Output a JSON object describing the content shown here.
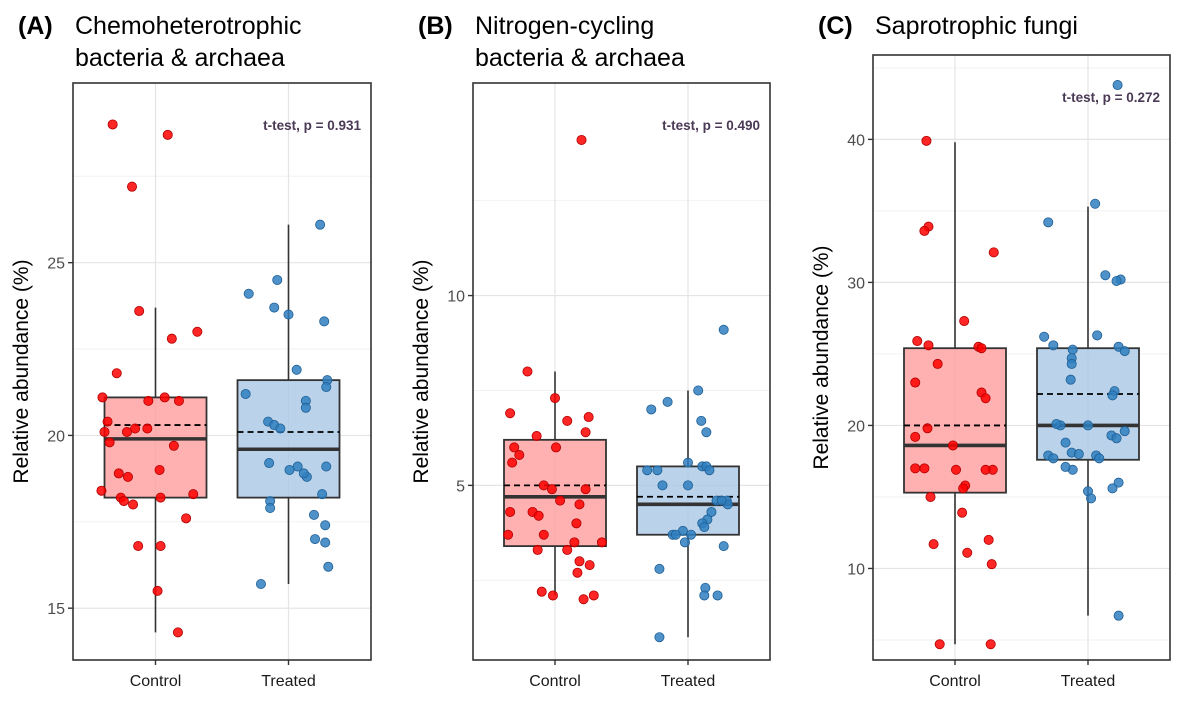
{
  "figure": {
    "panels_label": "three box plots with jittered points"
  },
  "colors": {
    "control_fill": "#ff9e9e",
    "control_point": "#ff0000",
    "treated_fill": "#a9c8e6",
    "treated_point": "#2f7fc0",
    "box_stroke": "#333333",
    "panel_border": "#333333",
    "grid_major": "#e4e4e4",
    "grid_minor": "#f2f2f2"
  },
  "chart_data": [
    {
      "type": "box",
      "panel_label": "(A)",
      "title": [
        "Chemoheterotrophic",
        "bacteria & archaea"
      ],
      "ylabel": "Relative abundance (%)",
      "categories": [
        "Control",
        "Treated"
      ],
      "ylim": [
        13.5,
        30.2
      ],
      "yticks": [
        15,
        20,
        25
      ],
      "minor_yticks": [
        17.5,
        22.5,
        27.5
      ],
      "annotation": "t-test, p = 0.931",
      "boxes": [
        {
          "name": "Control",
          "q1": 18.2,
          "median": 19.9,
          "q3": 21.1,
          "mean": 20.3,
          "whisker_low": 14.3,
          "whisker_high": 23.7
        },
        {
          "name": "Treated",
          "q1": 18.2,
          "median": 19.6,
          "q3": 21.6,
          "mean": 20.1,
          "whisker_low": 15.7,
          "whisker_high": 26.1
        }
      ],
      "points": [
        {
          "group": "Control",
          "values": [
            [
              -0.42,
              29.0
            ],
            [
              0.12,
              28.7
            ],
            [
              -0.23,
              27.2
            ],
            [
              -0.16,
              23.6
            ],
            [
              0.16,
              22.8
            ],
            [
              0.41,
              23.0
            ],
            [
              -0.38,
              21.8
            ],
            [
              -0.52,
              21.1
            ],
            [
              -0.07,
              21.0
            ],
            [
              0.09,
              21.1
            ],
            [
              0.23,
              21.0
            ],
            [
              -0.47,
              20.4
            ],
            [
              -0.2,
              20.2
            ],
            [
              -0.08,
              20.2
            ],
            [
              -0.28,
              20.1
            ],
            [
              -0.5,
              20.1
            ],
            [
              -0.45,
              19.8
            ],
            [
              0.18,
              19.7
            ],
            [
              -0.36,
              18.9
            ],
            [
              0.04,
              19.0
            ],
            [
              -0.27,
              18.8
            ],
            [
              -0.53,
              18.4
            ],
            [
              -0.34,
              18.2
            ],
            [
              -0.31,
              18.1
            ],
            [
              -0.22,
              18.0
            ],
            [
              0.05,
              18.2
            ],
            [
              0.37,
              18.3
            ],
            [
              0.3,
              17.6
            ],
            [
              -0.17,
              16.8
            ],
            [
              0.05,
              16.8
            ],
            [
              0.02,
              15.5
            ],
            [
              0.22,
              14.3
            ]
          ]
        },
        {
          "group": "Treated",
          "values": [
            [
              -0.39,
              24.1
            ],
            [
              -0.11,
              24.5
            ],
            [
              -0.14,
              23.7
            ],
            [
              0.0,
              23.5
            ],
            [
              0.31,
              26.1
            ],
            [
              0.35,
              23.3
            ],
            [
              0.08,
              21.9
            ],
            [
              0.38,
              21.6
            ],
            [
              0.37,
              21.4
            ],
            [
              -0.42,
              21.2
            ],
            [
              0.17,
              21.0
            ],
            [
              0.17,
              20.8
            ],
            [
              -0.2,
              20.4
            ],
            [
              -0.14,
              20.3
            ],
            [
              -0.08,
              20.2
            ],
            [
              -0.19,
              19.2
            ],
            [
              0.09,
              19.1
            ],
            [
              0.01,
              19.0
            ],
            [
              0.37,
              19.1
            ],
            [
              0.18,
              18.8
            ],
            [
              0.15,
              18.9
            ],
            [
              -0.18,
              18.1
            ],
            [
              0.33,
              18.3
            ],
            [
              -0.18,
              17.9
            ],
            [
              0.25,
              17.7
            ],
            [
              0.36,
              17.4
            ],
            [
              0.26,
              17.0
            ],
            [
              0.36,
              16.9
            ],
            [
              0.39,
              16.2
            ],
            [
              -0.27,
              15.7
            ]
          ]
        }
      ]
    },
    {
      "type": "box",
      "panel_label": "(B)",
      "title": [
        "Nitrogen-cycling",
        "bacteria & archaea"
      ],
      "ylabel": "Relative abundance (%)",
      "categories": [
        "Control",
        "Treated"
      ],
      "ylim": [
        0.4,
        15.6
      ],
      "yticks": [
        5,
        10
      ],
      "minor_yticks": [
        2.5,
        7.5,
        12.5
      ],
      "annotation": "t-test, p = 0.490",
      "boxes": [
        {
          "name": "Control",
          "q1": 3.4,
          "median": 4.7,
          "q3": 6.2,
          "mean": 5.0,
          "whisker_low": 2.1,
          "whisker_high": 8.0
        },
        {
          "name": "Treated",
          "q1": 3.7,
          "median": 4.5,
          "q3": 5.5,
          "mean": 4.7,
          "whisker_low": 1.0,
          "whisker_high": 7.5
        }
      ],
      "points": [
        {
          "group": "Control",
          "values": [
            [
              0.26,
              14.1
            ],
            [
              -0.27,
              8.0
            ],
            [
              -0.44,
              6.9
            ],
            [
              0.0,
              7.3
            ],
            [
              0.33,
              6.8
            ],
            [
              0.12,
              6.7
            ],
            [
              -0.18,
              6.3
            ],
            [
              -0.4,
              6.0
            ],
            [
              0.01,
              6.0
            ],
            [
              0.3,
              6.4
            ],
            [
              -0.35,
              5.8
            ],
            [
              -0.42,
              5.6
            ],
            [
              -0.11,
              5.0
            ],
            [
              -0.03,
              4.9
            ],
            [
              0.3,
              4.9
            ],
            [
              0.05,
              4.6
            ],
            [
              0.24,
              4.5
            ],
            [
              -0.44,
              4.3
            ],
            [
              -0.22,
              4.3
            ],
            [
              -0.16,
              4.2
            ],
            [
              0.21,
              4.0
            ],
            [
              -0.46,
              3.7
            ],
            [
              -0.11,
              3.7
            ],
            [
              0.46,
              3.5
            ],
            [
              0.19,
              3.5
            ],
            [
              -0.17,
              3.3
            ],
            [
              0.12,
              3.3
            ],
            [
              0.34,
              2.9
            ],
            [
              0.24,
              3.0
            ],
            [
              0.22,
              2.7
            ],
            [
              -0.13,
              2.2
            ],
            [
              -0.02,
              2.1
            ],
            [
              0.28,
              2.0
            ],
            [
              0.38,
              2.1
            ]
          ]
        },
        {
          "group": "Treated",
          "values": [
            [
              -0.36,
              7.0
            ],
            [
              -0.2,
              7.2
            ],
            [
              0.1,
              7.5
            ],
            [
              0.35,
              9.1
            ],
            [
              0.13,
              6.7
            ],
            [
              0.18,
              6.4
            ],
            [
              -0.3,
              5.4
            ],
            [
              0.0,
              5.6
            ],
            [
              0.14,
              5.5
            ],
            [
              0.18,
              5.5
            ],
            [
              0.21,
              5.4
            ],
            [
              -0.4,
              5.4
            ],
            [
              -0.25,
              5.0
            ],
            [
              0.0,
              5.0
            ],
            [
              0.38,
              4.6
            ],
            [
              0.28,
              4.6
            ],
            [
              0.39,
              4.5
            ],
            [
              0.23,
              4.3
            ],
            [
              0.33,
              4.6
            ],
            [
              0.19,
              4.1
            ],
            [
              0.14,
              4.0
            ],
            [
              0.16,
              3.9
            ],
            [
              -0.05,
              3.8
            ],
            [
              -0.15,
              3.7
            ],
            [
              -0.12,
              3.7
            ],
            [
              0.03,
              3.7
            ],
            [
              -0.03,
              3.5
            ],
            [
              0.35,
              3.4
            ],
            [
              -0.28,
              2.8
            ],
            [
              0.17,
              2.3
            ],
            [
              0.16,
              2.1
            ],
            [
              0.29,
              2.1
            ],
            [
              -0.28,
              1.0
            ]
          ]
        }
      ]
    },
    {
      "type": "box",
      "panel_label": "(C)",
      "title": [
        "Saprotrophic fungi"
      ],
      "ylabel": "Relative abundance (%)",
      "categories": [
        "Control",
        "Treated"
      ],
      "ylim": [
        3.6,
        45.9
      ],
      "yticks": [
        10,
        20,
        30,
        40
      ],
      "minor_yticks": [
        5,
        15,
        25,
        35,
        45
      ],
      "annotation": "t-test, p = 0.272",
      "boxes": [
        {
          "name": "Control",
          "q1": 15.3,
          "median": 18.6,
          "q3": 25.4,
          "mean": 20.0,
          "whisker_low": 4.7,
          "whisker_high": 39.8
        },
        {
          "name": "Treated",
          "q1": 17.6,
          "median": 20.0,
          "q3": 25.4,
          "mean": 22.2,
          "whisker_low": 6.7,
          "whisker_high": 35.3
        }
      ],
      "points": [
        {
          "group": "Control",
          "values": [
            [
              -0.28,
              39.9
            ],
            [
              -0.26,
              33.9
            ],
            [
              -0.3,
              33.6
            ],
            [
              0.38,
              32.1
            ],
            [
              0.09,
              27.3
            ],
            [
              -0.37,
              25.9
            ],
            [
              -0.26,
              25.6
            ],
            [
              0.23,
              25.5
            ],
            [
              0.26,
              25.4
            ],
            [
              -0.17,
              24.3
            ],
            [
              -0.39,
              23.0
            ],
            [
              0.26,
              22.3
            ],
            [
              0.3,
              21.9
            ],
            [
              -0.27,
              19.8
            ],
            [
              -0.39,
              19.2
            ],
            [
              -0.02,
              18.6
            ],
            [
              -0.39,
              17.0
            ],
            [
              -0.3,
              17.0
            ],
            [
              0.01,
              16.9
            ],
            [
              0.37,
              16.9
            ],
            [
              0.3,
              16.9
            ],
            [
              0.1,
              15.8
            ],
            [
              0.08,
              15.6
            ],
            [
              -0.24,
              15.0
            ],
            [
              0.07,
              13.9
            ],
            [
              -0.21,
              11.7
            ],
            [
              0.33,
              12.0
            ],
            [
              0.12,
              11.1
            ],
            [
              0.36,
              10.3
            ],
            [
              -0.15,
              4.7
            ],
            [
              0.35,
              4.7
            ]
          ]
        },
        {
          "group": "Treated",
          "values": [
            [
              0.29,
              43.8
            ],
            [
              -0.39,
              34.2
            ],
            [
              0.07,
              35.5
            ],
            [
              0.17,
              30.5
            ],
            [
              0.32,
              30.2
            ],
            [
              0.28,
              30.1
            ],
            [
              -0.43,
              26.2
            ],
            [
              0.09,
              26.3
            ],
            [
              -0.34,
              25.6
            ],
            [
              -0.15,
              25.3
            ],
            [
              0.3,
              25.5
            ],
            [
              0.36,
              25.2
            ],
            [
              -0.16,
              24.7
            ],
            [
              -0.16,
              24.3
            ],
            [
              0.26,
              22.4
            ],
            [
              -0.17,
              23.2
            ],
            [
              0.24,
              22.1
            ],
            [
              -0.27,
              20.0
            ],
            [
              0.0,
              20.0
            ],
            [
              -0.31,
              20.1
            ],
            [
              0.23,
              19.3
            ],
            [
              0.36,
              19.6
            ],
            [
              -0.22,
              18.8
            ],
            [
              -0.16,
              18.1
            ],
            [
              -0.09,
              18.0
            ],
            [
              -0.39,
              17.9
            ],
            [
              0.08,
              17.9
            ],
            [
              -0.34,
              17.7
            ],
            [
              0.28,
              19.1
            ],
            [
              0.11,
              17.7
            ],
            [
              -0.15,
              16.9
            ],
            [
              -0.22,
              17.1
            ],
            [
              0.3,
              16.0
            ],
            [
              0.24,
              15.6
            ],
            [
              0.0,
              15.4
            ],
            [
              0.03,
              14.9
            ],
            [
              0.3,
              6.7
            ]
          ]
        }
      ]
    }
  ]
}
